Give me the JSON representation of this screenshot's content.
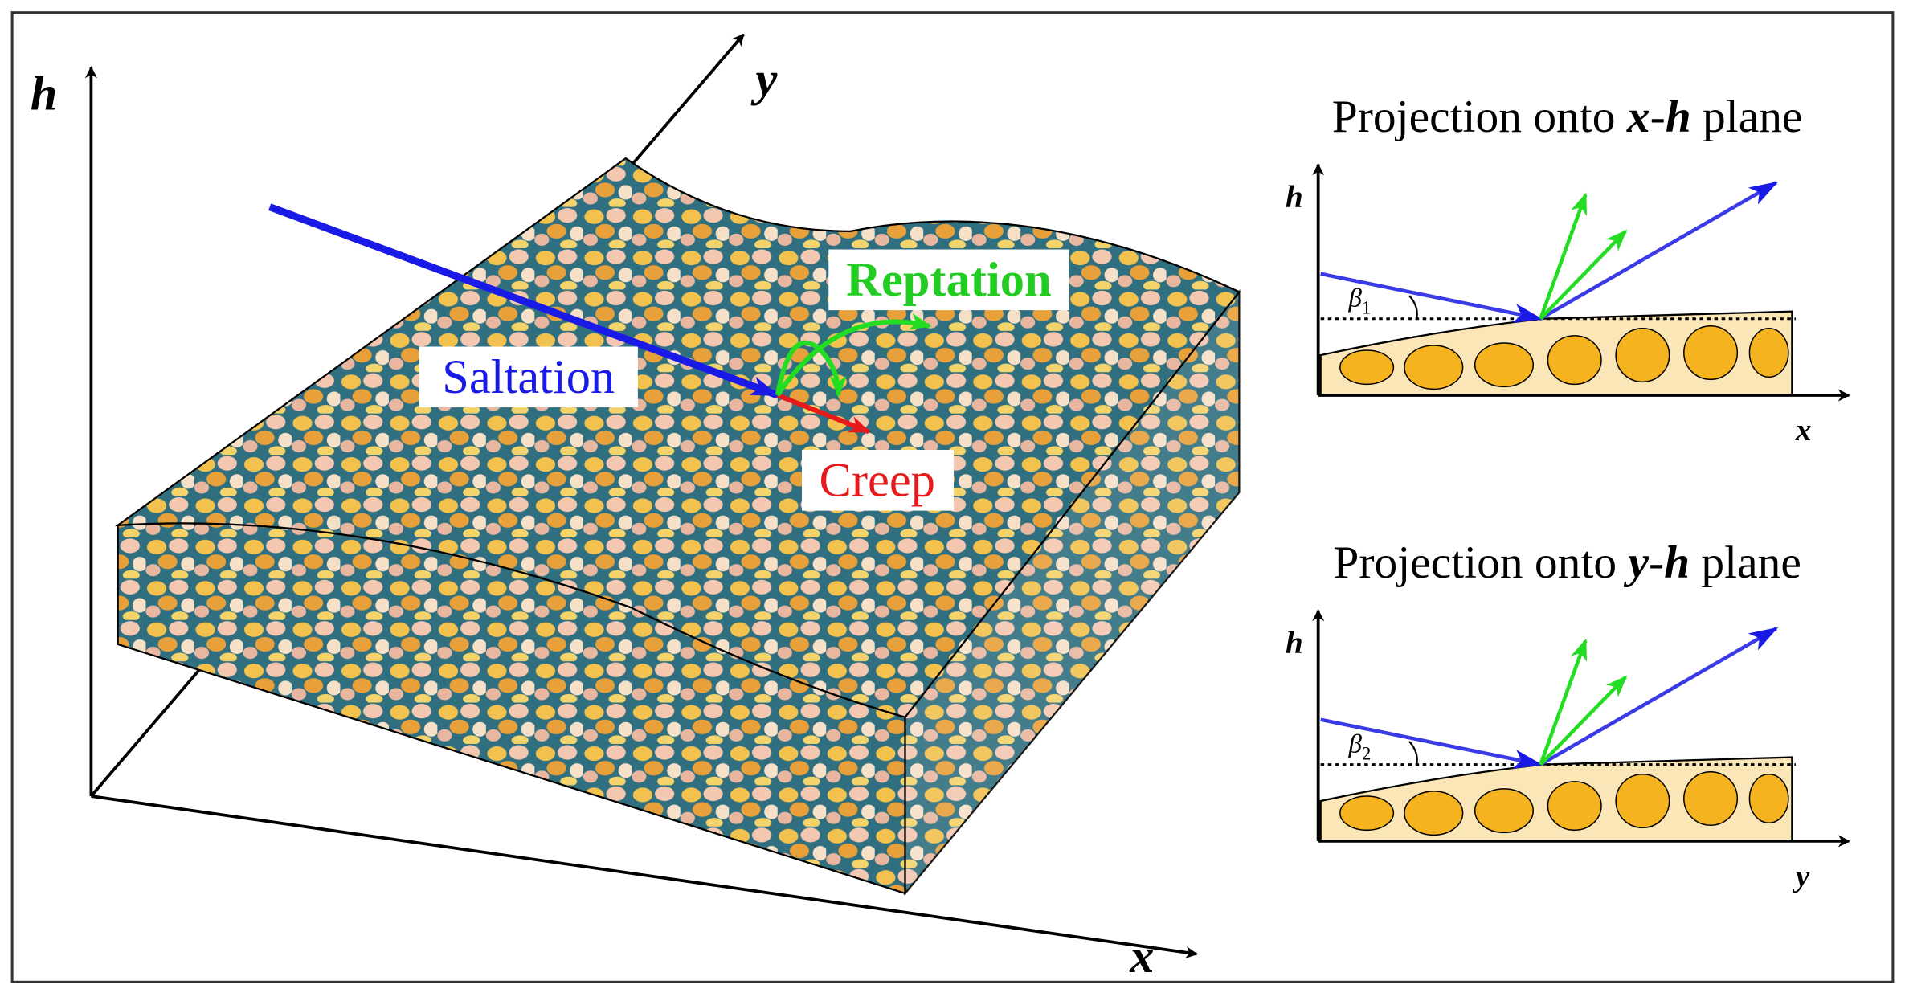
{
  "main": {
    "axes": {
      "h": "h",
      "y": "y",
      "x": "x"
    },
    "labels": {
      "saltation": "Saltation",
      "reptation": "Reptation",
      "creep": "Creep"
    }
  },
  "panels": [
    {
      "title": [
        "Projection onto ",
        "x",
        "-",
        "h",
        " plane"
      ],
      "axes": {
        "h": "h",
        "horizontal": "x"
      },
      "angle": {
        "symbol": "β",
        "subscript": "1"
      }
    },
    {
      "title": [
        "Projection onto ",
        "y",
        "-",
        "h",
        " plane"
      ],
      "axes": {
        "h": "h",
        "horizontal": "y"
      },
      "angle": {
        "symbol": "β",
        "subscript": "2"
      }
    }
  ]
}
